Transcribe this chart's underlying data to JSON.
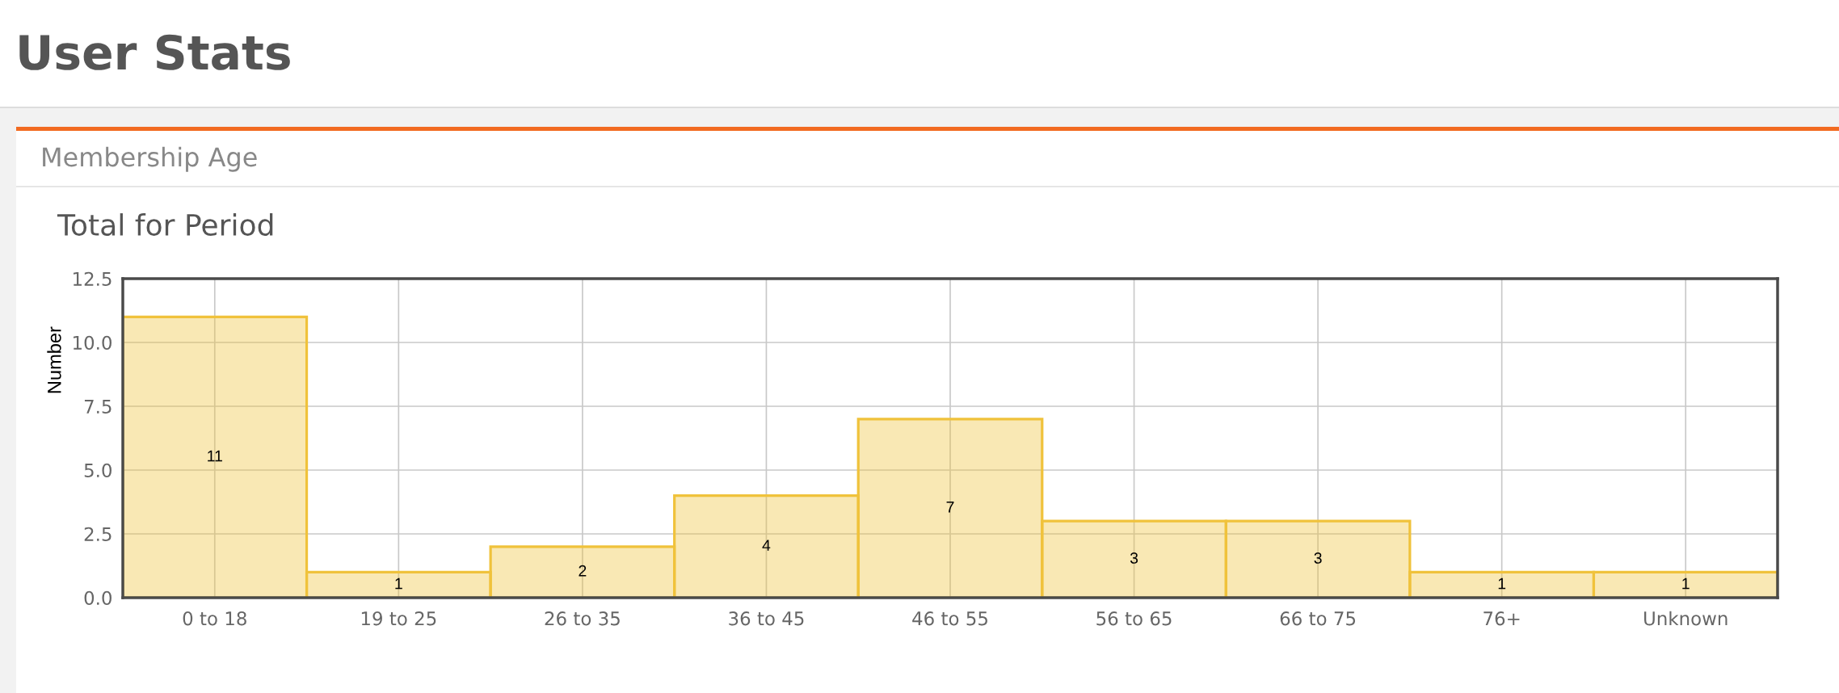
{
  "chart_data": {
    "type": "bar",
    "title": "User Stats",
    "subtitle": "Membership Age",
    "annotations": [
      "Total for Period"
    ],
    "ylabel": "Number",
    "categories": [
      "0 to 18",
      "19 to 25",
      "26 to 35",
      "36 to 45",
      "46 to 55",
      "56 to 65",
      "66 to 75",
      "76+",
      "Unknown"
    ],
    "values": [
      11,
      1,
      2,
      4,
      7,
      3,
      3,
      1,
      1
    ],
    "color": "#f0c23b",
    "ylim": [
      0,
      12.5
    ],
    "yticks": [
      {
        "value": 0,
        "label": "0.0"
      },
      2.5,
      {
        "value": 5,
        "label": "5.0"
      },
      7.5,
      {
        "value": 10,
        "label": "10.0"
      },
      12.5
    ],
    "grid": true,
    "data_labels": true
  }
}
